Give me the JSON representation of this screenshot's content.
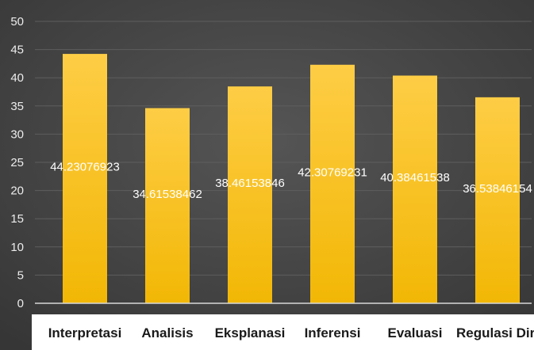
{
  "chart_data": {
    "type": "bar",
    "title": "",
    "xlabel": "",
    "ylabel": "",
    "categories": [
      "Interpretasi",
      "Analisis",
      "Eksplanasi",
      "Inferensi",
      "Evaluasi",
      "Regulasi Diri"
    ],
    "values": [
      44.23076923,
      34.61538462,
      38.46153846,
      42.30769231,
      40.38461538,
      36.53846154
    ],
    "data_labels": [
      "44.23076923",
      "34.61538462",
      "38.46153846",
      "42.30769231",
      "40.38461538",
      "36.53846154"
    ],
    "ylim": [
      0,
      50
    ],
    "yticks": [
      0,
      5,
      10,
      15,
      20,
      25,
      30,
      35,
      40,
      45,
      50
    ],
    "grid": true,
    "legend": "none",
    "colors": {
      "background": "#4a4a4a",
      "bar_top": "#fecd45",
      "bar_bottom": "#f2b705",
      "grid": "#5e5e5e",
      "axis_text": "#ececec",
      "category_panel": "#ffffff",
      "category_text": "#1a1a1a"
    }
  }
}
